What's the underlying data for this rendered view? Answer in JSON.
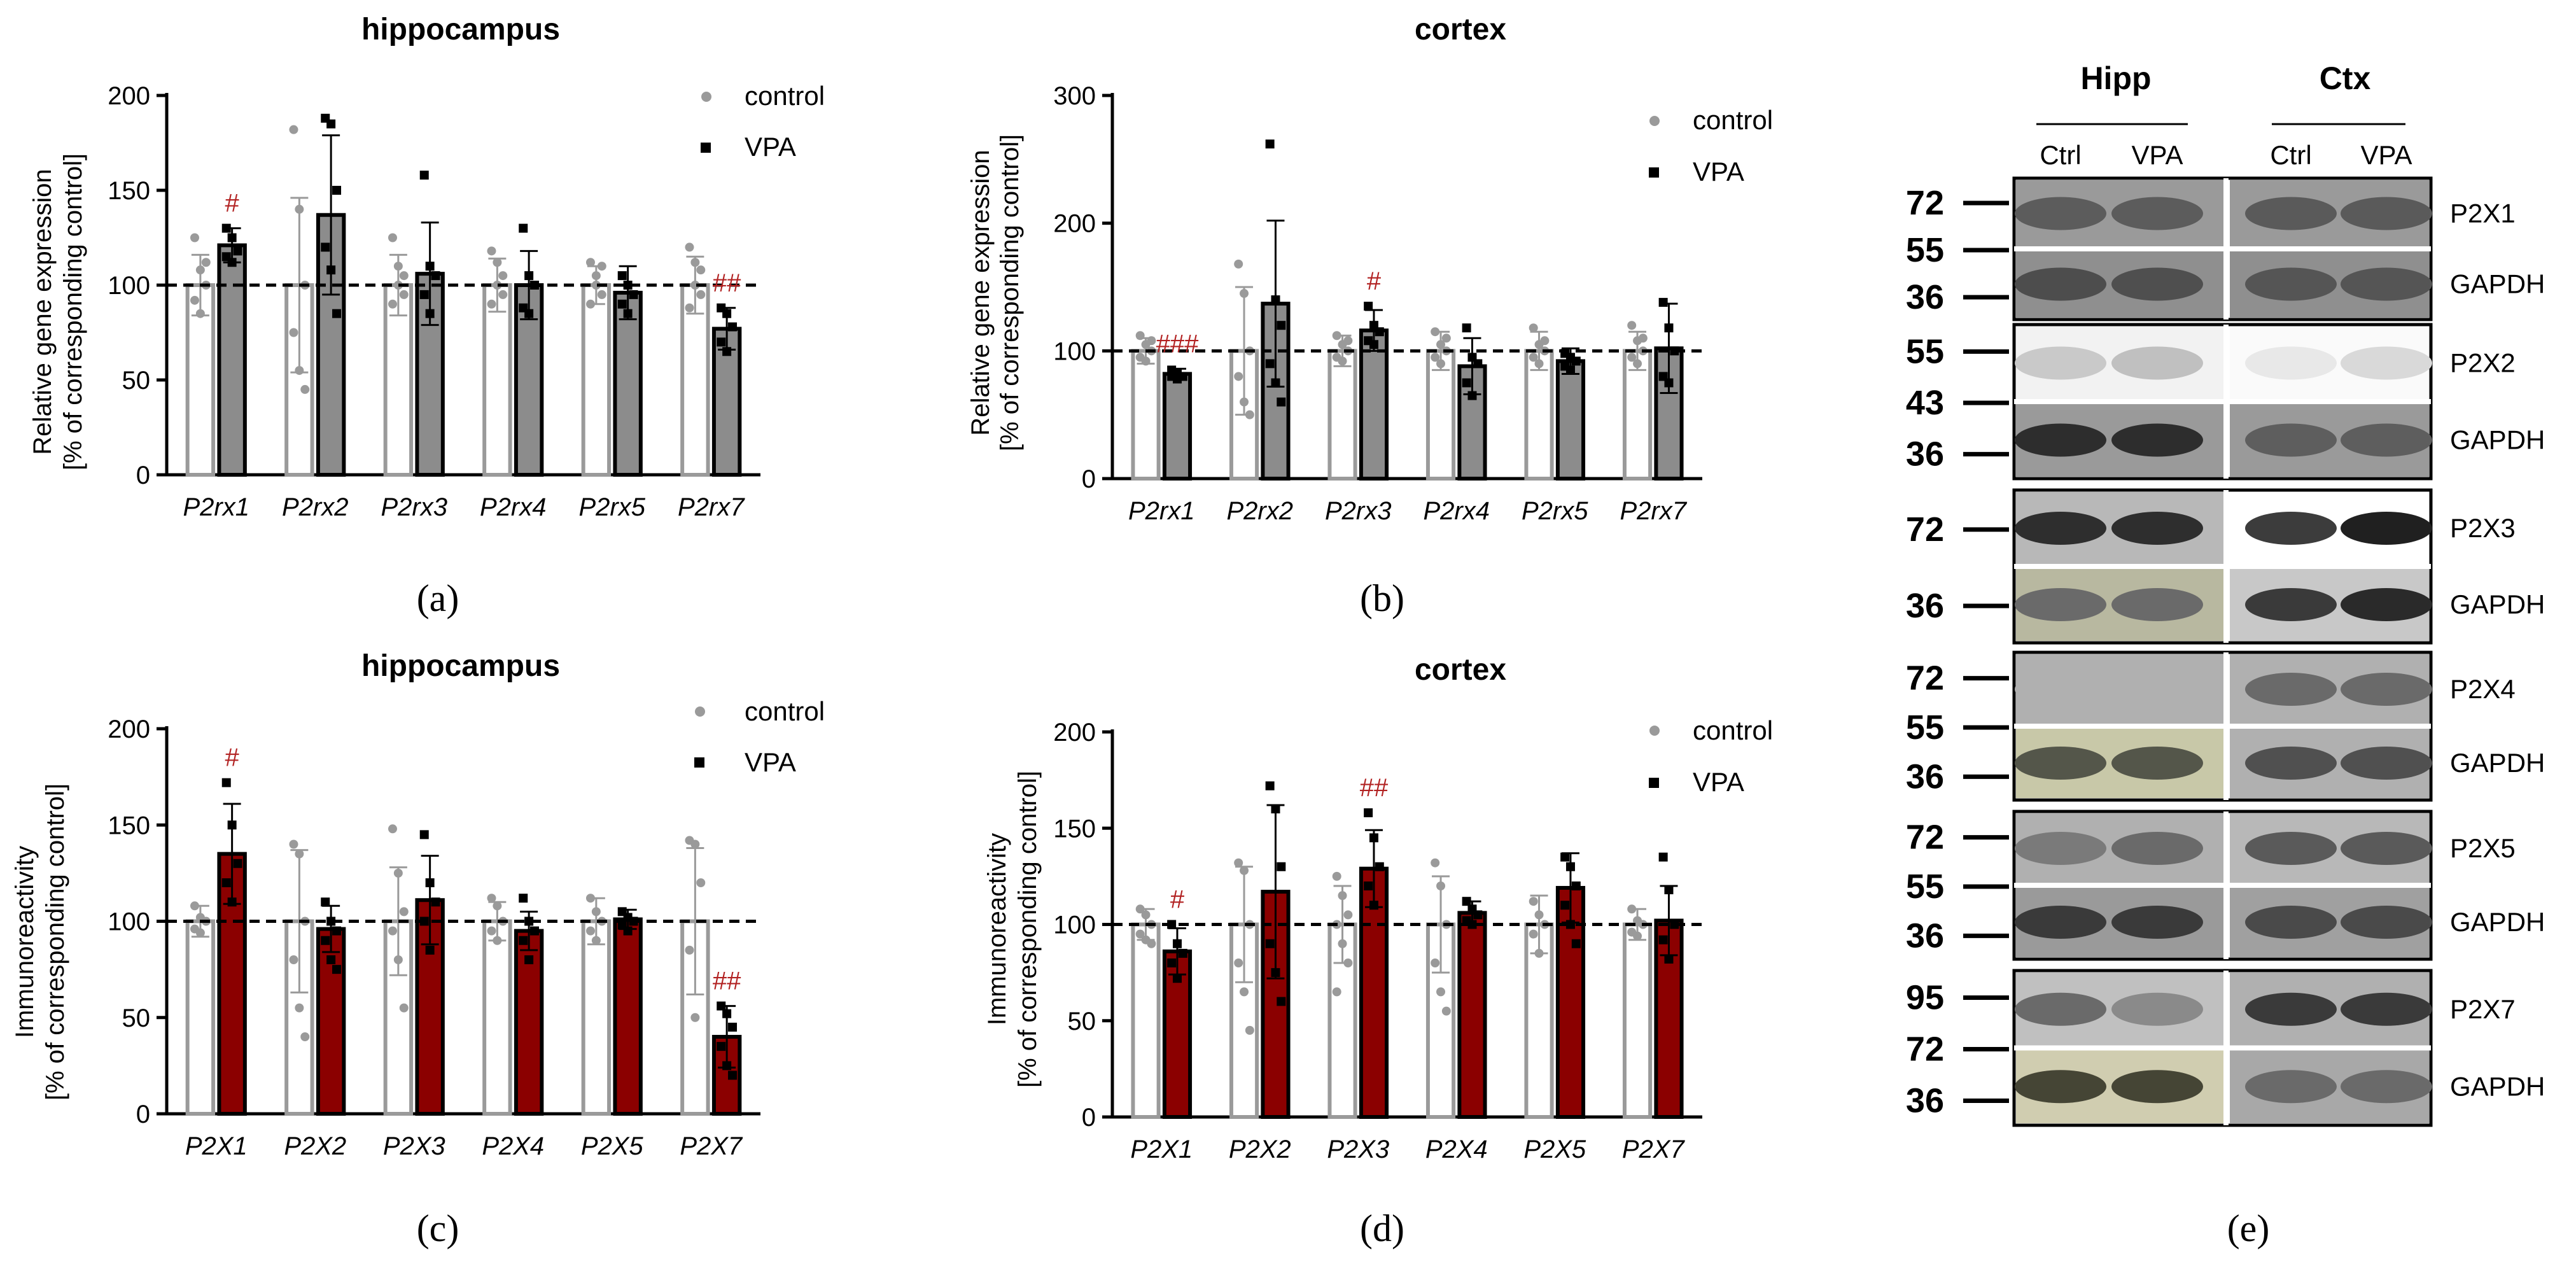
{
  "figure": {
    "panel_labels": [
      "(a)",
      "(b)",
      "(c)",
      "(d)",
      "(e)"
    ]
  },
  "colors": {
    "control": "#9a9a9a",
    "vpa_gene": "#8c8c8c",
    "vpa_protein": "#8b0000",
    "significance": "#b22222"
  },
  "chart_data": [
    {
      "id": "a",
      "type": "bar",
      "title": "hippocampus",
      "ylabel_lines": [
        "Relative gene expression",
        "[% of corresponding control]"
      ],
      "ylim": [
        0,
        200
      ],
      "yticks": [
        0,
        50,
        100,
        150,
        200
      ],
      "reference_line": 100,
      "categories": [
        "P2rx1",
        "P2rx2",
        "P2rx3",
        "P2rx4",
        "P2rx5",
        "P2rx7"
      ],
      "legend": [
        "control",
        "VPA"
      ],
      "series": [
        {
          "name": "control",
          "values": [
            100,
            100,
            100,
            100,
            100,
            100
          ],
          "sd": [
            16,
            46,
            16,
            14,
            10,
            15
          ],
          "points": [
            [
              125,
              108,
              100,
              92,
              85,
              112
            ],
            [
              182,
              140,
              100,
              75,
              55,
              45
            ],
            [
              125,
              100,
              95,
              90,
              110,
              105
            ],
            [
              118,
              100,
              95,
              90,
              112,
              105
            ],
            [
              112,
              105,
              95,
              90,
              100,
              110
            ],
            [
              120,
              100,
              95,
              88,
              112,
              108
            ]
          ]
        },
        {
          "name": "VPA",
          "values": [
            121,
            137,
            106,
            100,
            96,
            77
          ],
          "sd": [
            9,
            42,
            27,
            18,
            14,
            11
          ],
          "points": [
            [
              130,
              125,
              118,
              115,
              112
            ],
            [
              188,
              185,
              150,
              120,
              108,
              85
            ],
            [
              158,
              110,
              105,
              95,
              85
            ],
            [
              130,
              105,
              100,
              88,
              85
            ],
            [
              105,
              100,
              95,
              90,
              85
            ],
            [
              88,
              85,
              78,
              70,
              65
            ]
          ]
        }
      ],
      "significance": [
        {
          "category": "P2rx1",
          "mark": "#"
        },
        {
          "category": "P2rx7",
          "mark": "##"
        }
      ]
    },
    {
      "id": "b",
      "type": "bar",
      "title": "cortex",
      "ylabel_lines": [
        "Relative gene expression",
        "[% of corresponding control]"
      ],
      "ylim": [
        0,
        300
      ],
      "yticks": [
        0,
        100,
        200,
        300
      ],
      "reference_line": 100,
      "categories": [
        "P2rx1",
        "P2rx2",
        "P2rx3",
        "P2rx4",
        "P2rx5",
        "P2rx7"
      ],
      "legend": [
        "control",
        "VPA"
      ],
      "series": [
        {
          "name": "control",
          "values": [
            100,
            100,
            100,
            100,
            100,
            100
          ],
          "sd": [
            10,
            50,
            12,
            15,
            15,
            15
          ],
          "points": [
            [
              112,
              105,
              100,
              95,
              92,
              108
            ],
            [
              168,
              145,
              100,
              80,
              60,
              50
            ],
            [
              112,
              105,
              100,
              95,
              92,
              108
            ],
            [
              115,
              105,
              100,
              95,
              90,
              110
            ],
            [
              118,
              105,
              100,
              95,
              90,
              108
            ],
            [
              120,
              108,
              100,
              95,
              90,
              110
            ]
          ]
        },
        {
          "name": "VPA",
          "values": [
            82,
            137,
            116,
            88,
            92,
            102
          ],
          "sd": [
            4,
            65,
            16,
            22,
            10,
            35
          ],
          "points": [
            [
              85,
              82,
              80,
              80,
              78
            ],
            [
              262,
              140,
              120,
              90,
              75,
              60
            ],
            [
              135,
              120,
              115,
              108,
              105
            ],
            [
              118,
              95,
              90,
              75,
              65
            ],
            [
              98,
              95,
              92,
              88,
              85
            ],
            [
              138,
              118,
              100,
              80,
              75
            ]
          ]
        }
      ],
      "significance": [
        {
          "category": "P2rx1",
          "mark": "###"
        },
        {
          "category": "P2rx3",
          "mark": "#"
        }
      ]
    },
    {
      "id": "c",
      "type": "bar",
      "title": "hippocampus",
      "ylabel_lines": [
        "Immunoreactivity",
        "[% of corresponding control]"
      ],
      "ylim": [
        0,
        200
      ],
      "yticks": [
        0,
        50,
        100,
        150,
        200
      ],
      "reference_line": 100,
      "categories": [
        "P2X1",
        "P2X2",
        "P2X3",
        "P2X4",
        "P2X5",
        "P2X7"
      ],
      "legend": [
        "control",
        "VPA"
      ],
      "series": [
        {
          "name": "control",
          "values": [
            100,
            100,
            100,
            100,
            100,
            100
          ],
          "sd": [
            8,
            37,
            28,
            10,
            12,
            38
          ],
          "points": [
            [
              108,
              102,
              100,
              96,
              94
            ],
            [
              140,
              135,
              100,
              80,
              55,
              40
            ],
            [
              148,
              125,
              105,
              95,
              80,
              55
            ],
            [
              112,
              108,
              100,
              95,
              90
            ],
            [
              112,
              105,
              100,
              95,
              90
            ],
            [
              142,
              140,
              120,
              85,
              50
            ]
          ]
        },
        {
          "name": "VPA",
          "values": [
            135,
            96,
            111,
            95,
            101,
            40
          ],
          "sd": [
            26,
            12,
            23,
            10,
            5,
            16
          ],
          "points": [
            [
              172,
              150,
              130,
              120,
              110
            ],
            [
              110,
              100,
              95,
              90,
              80,
              75
            ],
            [
              145,
              120,
              110,
              100,
              85
            ],
            [
              112,
              100,
              95,
              90,
              80
            ],
            [
              105,
              102,
              100,
              98,
              95
            ],
            [
              56,
              52,
              45,
              35,
              25,
              20
            ]
          ]
        }
      ],
      "significance": [
        {
          "category": "P2X1",
          "mark": "#"
        },
        {
          "category": "P2X7",
          "mark": "##"
        }
      ]
    },
    {
      "id": "d",
      "type": "bar",
      "title": "cortex",
      "ylabel_lines": [
        "Immunoreactivity",
        "[% of corresponding control]"
      ],
      "ylim": [
        0,
        200
      ],
      "yticks": [
        0,
        50,
        100,
        150,
        200
      ],
      "reference_line": 100,
      "categories": [
        "P2X1",
        "P2X2",
        "P2X3",
        "P2X4",
        "P2X5",
        "P2X7"
      ],
      "legend": [
        "control",
        "VPA"
      ],
      "series": [
        {
          "name": "control",
          "values": [
            100,
            100,
            100,
            100,
            100,
            100
          ],
          "sd": [
            8,
            30,
            20,
            25,
            15,
            8
          ],
          "points": [
            [
              108,
              105,
              100,
              95,
              92,
              90
            ],
            [
              132,
              128,
              100,
              80,
              65,
              45
            ],
            [
              125,
              115,
              105,
              100,
              90,
              80,
              65
            ],
            [
              132,
              120,
              100,
              80,
              65,
              55
            ],
            [
              112,
              105,
              100,
              95,
              85
            ],
            [
              108,
              102,
              100,
              96,
              94
            ]
          ]
        },
        {
          "name": "VPA",
          "values": [
            86,
            117,
            129,
            106,
            119,
            102
          ],
          "sd": [
            12,
            45,
            20,
            6,
            18,
            18
          ],
          "points": [
            [
              100,
              90,
              85,
              80,
              72
            ],
            [
              172,
              160,
              130,
              90,
              75,
              60
            ],
            [
              158,
              145,
              130,
              120,
              110
            ],
            [
              112,
              108,
              105,
              102,
              100
            ],
            [
              135,
              130,
              120,
              110,
              100,
              90
            ],
            [
              135,
              118,
              100,
              92,
              82
            ]
          ]
        }
      ],
      "significance": [
        {
          "category": "P2X1",
          "mark": "#"
        },
        {
          "category": "P2X3",
          "mark": "##"
        }
      ]
    },
    {
      "id": "e",
      "type": "western_blot",
      "groups": [
        "Hipp",
        "Ctx"
      ],
      "lanes": [
        "Ctrl",
        "VPA",
        "Ctrl",
        "VPA"
      ],
      "blocks": [
        {
          "rows": [
            {
              "marker": "72",
              "band": null
            },
            {
              "marker": "55",
              "band": "P2X1"
            },
            {
              "marker": "36",
              "band": "GAPDH"
            }
          ]
        },
        {
          "rows": [
            {
              "marker": "55",
              "band": null
            },
            {
              "marker": "43",
              "band": "P2X2"
            },
            {
              "marker": "36",
              "band": "GAPDH"
            }
          ]
        },
        {
          "rows": [
            {
              "marker": "72",
              "band": "P2X3"
            },
            {
              "marker": "36",
              "band": "GAPDH"
            }
          ]
        },
        {
          "rows": [
            {
              "marker": "72",
              "band": null
            },
            {
              "marker": "55",
              "band": "P2X4"
            },
            {
              "marker": "36",
              "band": "GAPDH"
            }
          ]
        },
        {
          "rows": [
            {
              "marker": "72",
              "band": null
            },
            {
              "marker": "55",
              "band": "P2X5"
            },
            {
              "marker": "36",
              "band": "GAPDH"
            }
          ]
        },
        {
          "rows": [
            {
              "marker": "95",
              "band": null
            },
            {
              "marker": "72",
              "band": "P2X7"
            },
            {
              "marker": "36",
              "band": "GAPDH"
            }
          ]
        }
      ]
    }
  ]
}
